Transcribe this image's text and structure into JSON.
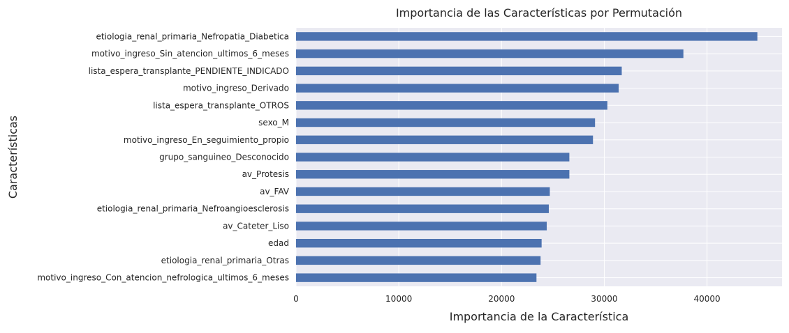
{
  "chart_data": {
    "type": "bar",
    "orientation": "horizontal",
    "title": "Importancia de las Características por Permutación",
    "xlabel": "Importancia de la Característica",
    "ylabel": "Características",
    "xlim": [
      0,
      47300
    ],
    "xticks": [
      0,
      10000,
      20000,
      30000,
      40000
    ],
    "xtick_labels": [
      "0",
      "10000",
      "20000",
      "30000",
      "40000"
    ],
    "grid": true,
    "bar_color": "#4c72b0",
    "background_color": "#eaeaf2",
    "categories": [
      "etiologia_renal_primaria_Nefropatia_Diabetica",
      "motivo_ingreso_Sin_atencion_ultimos_6_meses",
      "lista_espera_transplante_PENDIENTE_INDICADO",
      "motivo_ingreso_Derivado",
      "lista_espera_transplante_OTROS",
      "sexo_M",
      "motivo_ingreso_En_seguimiento_propio",
      "grupo_sanguineo_Desconocido",
      "av_Protesis",
      "av_FAV",
      "etiologia_renal_primaria_Nefroangioesclerosis",
      "av_Cateter_Liso",
      "edad",
      "etiologia_renal_primaria_Otras",
      "motivo_ingreso_Con_atencion_nefrologica_ultimos_6_meses"
    ],
    "values": [
      44900,
      37700,
      31700,
      31400,
      30300,
      29100,
      28900,
      26600,
      26600,
      24700,
      24600,
      24400,
      23900,
      23800,
      23400
    ]
  }
}
